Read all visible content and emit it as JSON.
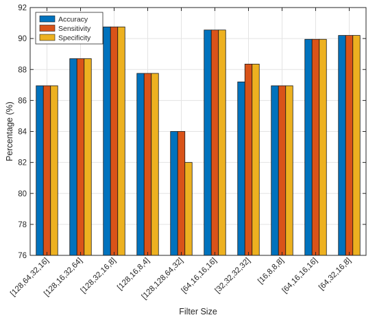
{
  "chart_data": {
    "type": "bar",
    "xlabel": "Filter Size",
    "ylabel": "Percentage (%)",
    "ylim": [
      76,
      92
    ],
    "yticks": [
      76,
      78,
      80,
      82,
      84,
      86,
      88,
      90,
      92
    ],
    "grid": true,
    "legend_position": "top-left",
    "categories": [
      "[128,64,32,16]",
      "[128,16,32,64]",
      "[128,32,16,8]",
      "[128,16,8,4]",
      "[128,128,64,32]",
      "[64,16,16,16]",
      "[32,32,32,32]",
      "[16,8,8,8]",
      "[64,16,16,16]",
      "[64,32,16,8]"
    ],
    "series": [
      {
        "name": "Accuracy",
        "color": "#0072BD",
        "values": [
          86.95,
          88.7,
          90.75,
          87.75,
          84.0,
          90.55,
          87.2,
          86.95,
          89.95,
          90.2
        ]
      },
      {
        "name": "Sensitivity",
        "color": "#D95319",
        "values": [
          86.95,
          88.7,
          90.75,
          87.75,
          84.0,
          90.55,
          88.35,
          86.95,
          89.95,
          90.2
        ]
      },
      {
        "name": "Specificity",
        "color": "#EDB120",
        "values": [
          86.95,
          88.7,
          90.75,
          87.75,
          82.0,
          90.55,
          88.35,
          86.95,
          89.95,
          90.2
        ]
      }
    ]
  }
}
